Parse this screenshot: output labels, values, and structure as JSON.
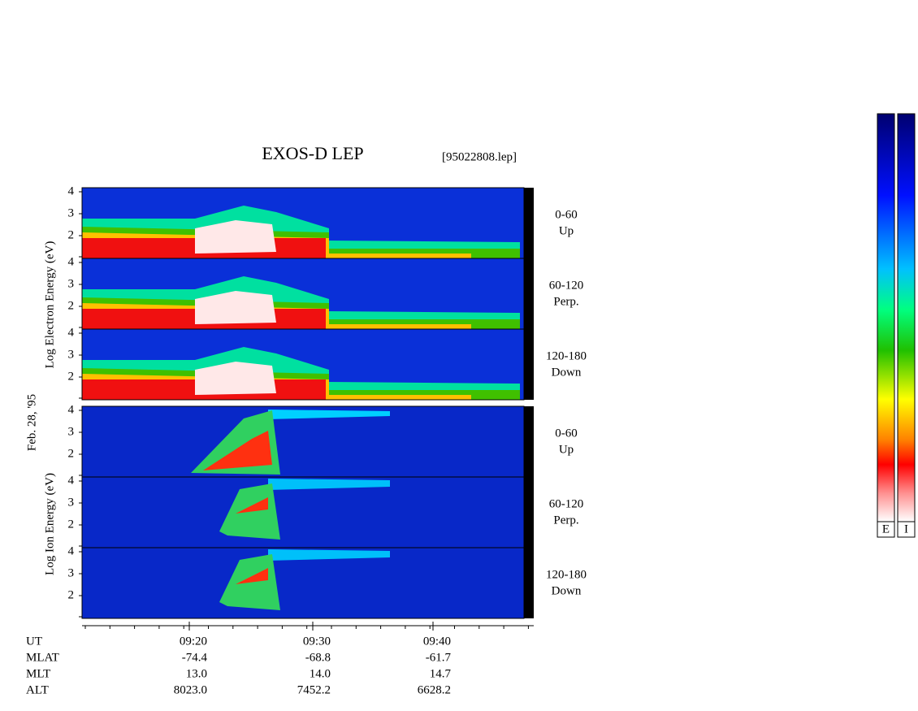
{
  "header": {
    "title": "EXOS-D LEP",
    "file": "[95022808.lep]"
  },
  "date": "Feb. 28, '95",
  "groups": [
    {
      "label": "Log  Electron  Energy (eV)",
      "yticks": [
        "4",
        "3",
        "2"
      ],
      "channels": [
        {
          "range": "0-60",
          "dir": "Up"
        },
        {
          "range": "60-120",
          "dir": "Perp."
        },
        {
          "range": "120-180",
          "dir": "Down"
        }
      ]
    },
    {
      "label": "Log  Ion  Energy (eV)",
      "yticks": [
        "4",
        "3",
        "2"
      ],
      "channels": [
        {
          "range": "0-60",
          "dir": "Up"
        },
        {
          "range": "60-120",
          "dir": "Perp."
        },
        {
          "range": "120-180",
          "dir": "Down"
        }
      ]
    }
  ],
  "axis": {
    "rows": [
      "UT",
      "MLAT",
      "MLT",
      "ALT"
    ],
    "columns": [
      [
        "09:20",
        "-74.4",
        "13.0",
        "8023.0"
      ],
      [
        "09:30",
        "-68.8",
        "14.0",
        "7452.2"
      ],
      [
        "09:40",
        "-61.7",
        "14.7",
        "6628.2"
      ]
    ]
  },
  "colorbars": [
    "E",
    "I"
  ]
}
